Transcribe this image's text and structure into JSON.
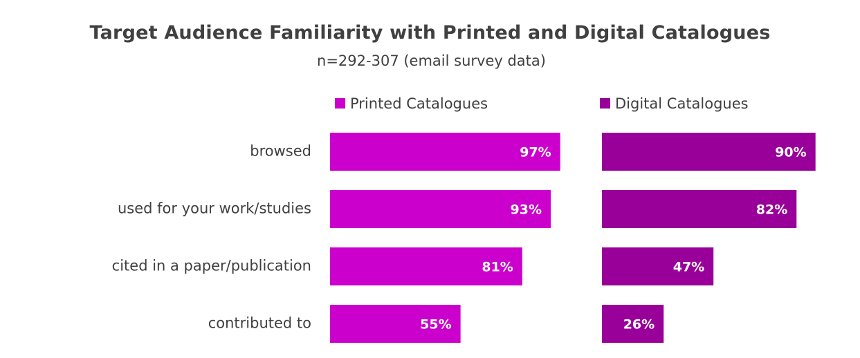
{
  "chart_data": {
    "type": "bar",
    "orientation": "horizontal",
    "title": "Target Audience Familiarity with Printed and Digital Catalogues",
    "subtitle": "n=292-307 (email survey data)",
    "categories": [
      "browsed",
      "used for your work/studies",
      "cited in a paper/publication",
      "contributed to"
    ],
    "series": [
      {
        "name": "Printed Catalogues",
        "values": [
          97,
          93,
          81,
          55
        ],
        "labels": [
          "97%",
          "93%",
          "81%",
          "55%"
        ],
        "color": "#CC00CC"
      },
      {
        "name": "Digital Catalogues",
        "values": [
          90,
          82,
          47,
          26
        ],
        "labels": [
          "90%",
          "82%",
          "47%",
          "26%"
        ],
        "color": "#990099"
      }
    ],
    "xlim": [
      0,
      100
    ],
    "grid": false,
    "legend_position": "top"
  }
}
